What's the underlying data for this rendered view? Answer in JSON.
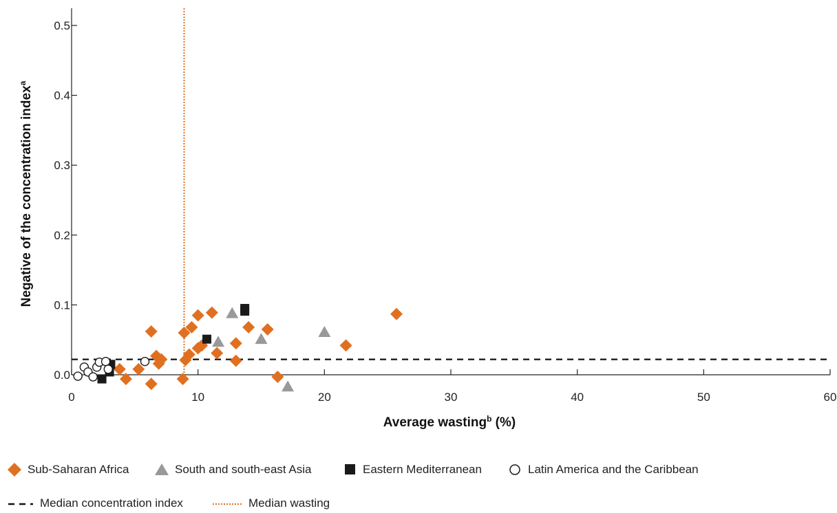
{
  "chart_data": {
    "type": "scatter",
    "xlabel": "Average wasting",
    "xlabel_sup": "b",
    "xlabel_unit": " (%)",
    "ylabel": "Negative of the concentration index",
    "ylabel_sup": "a",
    "xlim": [
      0,
      60
    ],
    "ylim": [
      -0.01,
      0.52
    ],
    "x_ticks": [
      0,
      10,
      20,
      30,
      40,
      50,
      60
    ],
    "y_ticks": [
      0.0,
      0.1,
      0.2,
      0.3,
      0.4,
      0.5
    ],
    "x_tick_labels": [
      "0",
      "10",
      "20",
      "30",
      "40",
      "50",
      "60"
    ],
    "y_tick_labels": [
      "0.0",
      "0.1",
      "0.2",
      "0.3",
      "0.4",
      "0.5"
    ],
    "median_concentration_index": 0.022,
    "median_wasting": 8.9,
    "series": [
      {
        "name": "Sub-Saharan Africa",
        "marker": "diamond",
        "color": "#e07020",
        "points": [
          [
            3.8,
            0.008
          ],
          [
            4.3,
            -0.006
          ],
          [
            5.3,
            0.008
          ],
          [
            6.3,
            -0.013
          ],
          [
            6.3,
            0.062
          ],
          [
            6.7,
            0.027
          ],
          [
            6.9,
            0.016
          ],
          [
            7.1,
            0.022
          ],
          [
            8.8,
            -0.006
          ],
          [
            8.9,
            0.06
          ],
          [
            9.0,
            0.021
          ],
          [
            9.3,
            0.029
          ],
          [
            9.5,
            0.068
          ],
          [
            10.0,
            0.038
          ],
          [
            10.0,
            0.085
          ],
          [
            10.3,
            0.042
          ],
          [
            11.1,
            0.089
          ],
          [
            11.5,
            0.031
          ],
          [
            13.0,
            0.02
          ],
          [
            13.0,
            0.045
          ],
          [
            14.0,
            0.068
          ],
          [
            15.5,
            0.065
          ],
          [
            16.3,
            -0.003
          ],
          [
            21.7,
            0.042
          ],
          [
            25.7,
            0.087
          ]
        ]
      },
      {
        "name": "South and south-east Asia",
        "marker": "triangle",
        "color": "#999999",
        "points": [
          [
            11.6,
            0.047
          ],
          [
            12.7,
            0.088
          ],
          [
            15.0,
            0.051
          ],
          [
            17.1,
            -0.017
          ],
          [
            20.0,
            0.061
          ]
        ]
      },
      {
        "name": "Eastern Mediterranean",
        "marker": "square",
        "color": "#1a1a1a",
        "points": [
          [
            2.4,
            -0.006
          ],
          [
            3.0,
            0.004
          ],
          [
            3.1,
            0.015
          ],
          [
            10.7,
            0.051
          ],
          [
            13.7,
            0.091
          ],
          [
            13.7,
            0.095
          ]
        ]
      },
      {
        "name": "Latin America and the Caribbean",
        "marker": "circle",
        "color": "#ffffff",
        "points": [
          [
            0.5,
            -0.002
          ],
          [
            1.0,
            0.011
          ],
          [
            1.3,
            0.004
          ],
          [
            1.7,
            -0.003
          ],
          [
            2.0,
            0.011
          ],
          [
            2.2,
            0.018
          ],
          [
            2.7,
            0.019
          ],
          [
            2.9,
            0.008
          ],
          [
            5.8,
            0.019
          ]
        ]
      }
    ],
    "legend": {
      "items": [
        {
          "label": "Sub-Saharan Africa",
          "icon": "diamond-icon"
        },
        {
          "label": "South and south-east Asia",
          "icon": "triangle-icon"
        },
        {
          "label": "Eastern Mediterranean",
          "icon": "square-icon"
        },
        {
          "label": "Latin America and the Caribbean",
          "icon": "circle-icon"
        }
      ],
      "lines": [
        {
          "label": "Median concentration index",
          "icon": "dashed-line-icon"
        },
        {
          "label": "Median wasting",
          "icon": "dotted-line-icon"
        }
      ]
    }
  }
}
